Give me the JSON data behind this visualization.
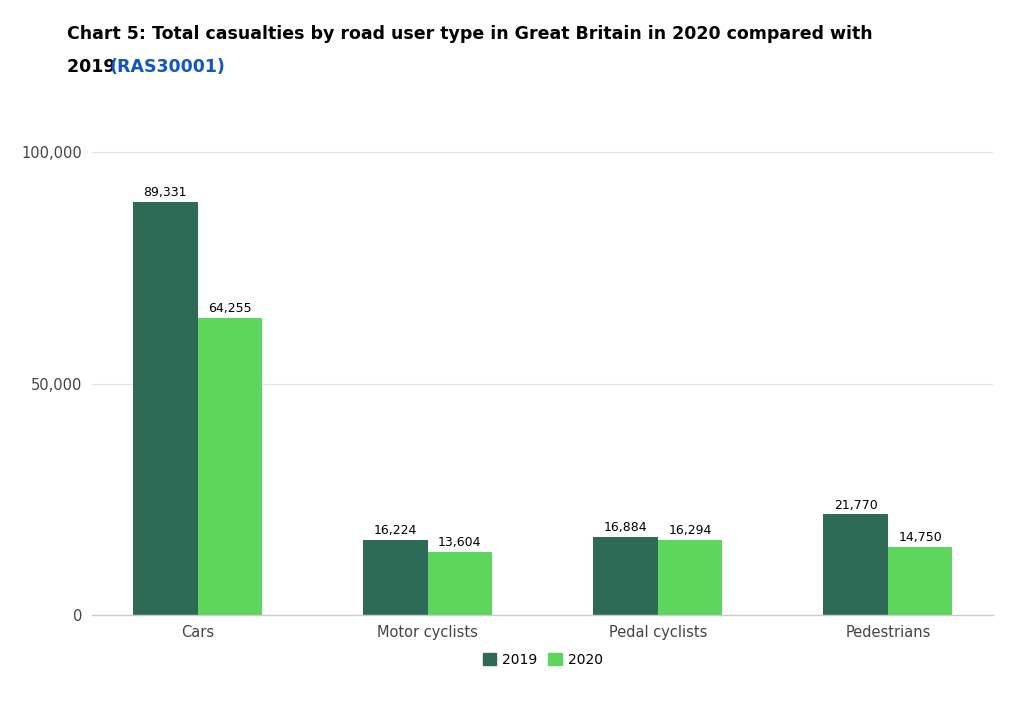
{
  "title_bold": "Chart 5: Total casualties by road user type in Great Britain in 2020 compared with",
  "title_bold2": "2019 ",
  "title_link": "(RAS30001)",
  "categories": [
    "Cars",
    "Motor cyclists",
    "Pedal cyclists",
    "Pedestrians"
  ],
  "values_2019": [
    89331,
    16224,
    16884,
    21770
  ],
  "values_2020": [
    64255,
    13604,
    16294,
    14750
  ],
  "color_2019": "#2d6b56",
  "color_2020": "#5cd65c",
  "bar_width": 0.28,
  "ylim": [
    0,
    110000
  ],
  "ytick_vals": [
    0,
    50000,
    100000
  ],
  "ytick_labels": [
    "0",
    "50,000",
    "100,000"
  ],
  "background_color": "#ffffff",
  "legend_labels": [
    "2019",
    "2020"
  ],
  "value_labels_2019": [
    "89,331",
    "16,224",
    "16,884",
    "21,770"
  ],
  "value_labels_2020": [
    "64,255",
    "13,604",
    "16,294",
    "14,750"
  ],
  "link_color": "#1155cc"
}
